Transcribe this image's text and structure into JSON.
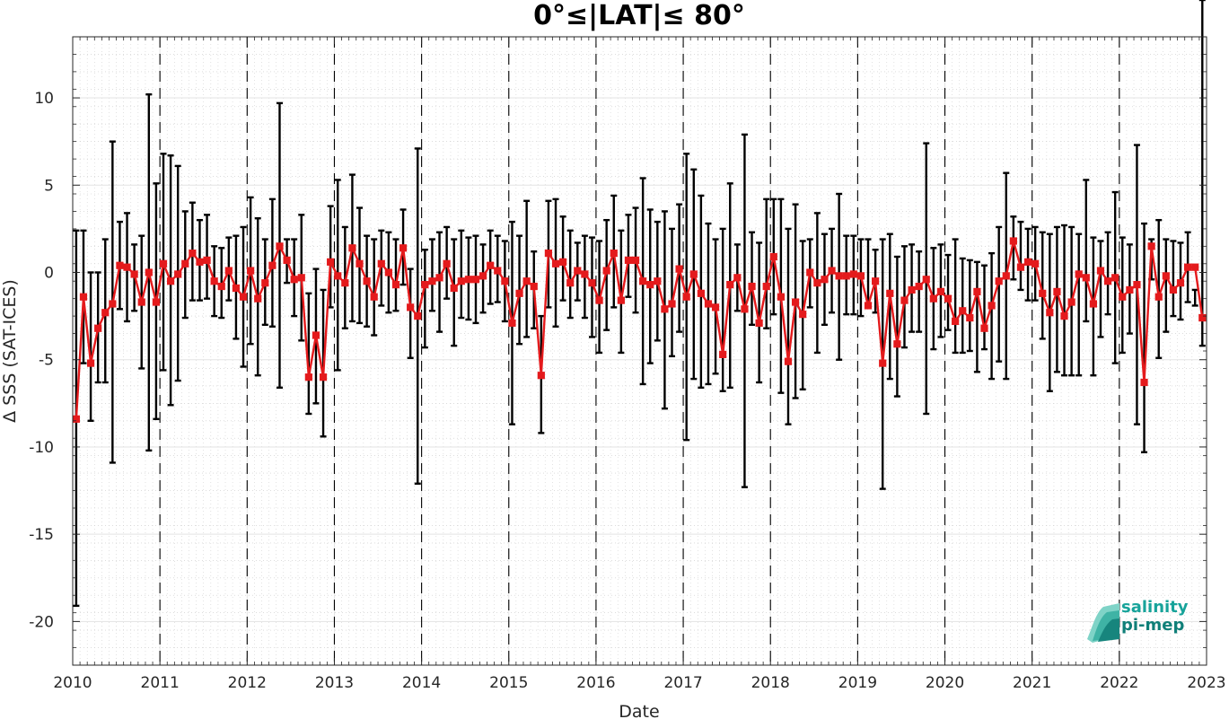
{
  "chart_data": {
    "type": "line",
    "title": "0°≤|LAT|≤ 80°",
    "xlabel": "Date",
    "ylabel": "Δ SSS (SAT-ICES)",
    "xlim": [
      2010,
      2023
    ],
    "ylim": [
      -22.5,
      13.5
    ],
    "xticks": [
      2010,
      2011,
      2012,
      2013,
      2014,
      2015,
      2016,
      2017,
      2018,
      2019,
      2020,
      2021,
      2022,
      2023
    ],
    "yticks": [
      -20,
      -15,
      -10,
      -5,
      0,
      5,
      10
    ],
    "grid": "on",
    "vertical_dashed_lines_at": [
      2011,
      2012,
      2013,
      2014,
      2015,
      2016,
      2017,
      2018,
      2019,
      2020,
      2021,
      2022
    ],
    "line_color": "#e41a1c",
    "errorbar_color": "#000000",
    "series": [
      {
        "x_start": 2010.04,
        "x_step": 0.0833,
        "values": [
          -8.4,
          -1.4,
          -5.2,
          -3.2,
          -2.3,
          -1.8,
          0.4,
          0.3,
          -0.1,
          -1.7,
          0.0,
          -1.7,
          0.5,
          -0.5,
          -0.1,
          0.5,
          1.1,
          0.6,
          0.7,
          -0.5,
          -0.8,
          0.1,
          -0.9,
          -1.4,
          0.1,
          -1.5,
          -0.6,
          0.4,
          1.5,
          0.7,
          -0.4,
          -0.3,
          -6.0,
          -3.6,
          -6.0,
          0.6,
          -0.2,
          -0.6,
          1.4,
          0.5,
          -0.5,
          -1.4,
          0.5,
          0.0,
          -0.7,
          1.4,
          -2.0,
          -2.5,
          -0.7,
          -0.5,
          -0.3,
          0.5,
          -0.9,
          -0.5,
          -0.4,
          -0.4,
          -0.2,
          0.4,
          0.1,
          -0.5,
          -2.9,
          -1.2,
          -0.5,
          -0.8,
          -5.9,
          1.1,
          0.5,
          0.6,
          -0.6,
          0.1,
          -0.1,
          -0.6,
          -1.6,
          0.1,
          1.1,
          -1.6,
          0.7,
          0.7,
          -0.5,
          -0.7,
          -0.5,
          -2.1,
          -1.8,
          0.2,
          -1.4,
          -0.1,
          -1.2,
          -1.8,
          -2.0,
          -4.7,
          -0.7,
          -0.3,
          -2.1,
          -0.8,
          -2.9,
          -0.8,
          0.9,
          -1.4,
          -5.1,
          -1.7,
          -2.4,
          0.0,
          -0.6,
          -0.4,
          0.1,
          -0.2,
          -0.2,
          -0.1,
          -0.2,
          -1.9,
          -0.5,
          -5.2,
          -1.2,
          -4.1,
          -1.6,
          -1.0,
          -0.8,
          -0.4,
          -1.5,
          -1.1,
          -1.5,
          -2.8,
          -2.2,
          -2.6,
          -1.1,
          -3.2,
          -1.9,
          -0.5,
          -0.2,
          1.8,
          0.3,
          0.6,
          0.5,
          -1.2,
          -2.3,
          -1.1,
          -2.5,
          -1.7,
          -0.1,
          -0.3,
          -1.8,
          0.1,
          -0.5,
          -0.3,
          -1.4,
          -1.0,
          -0.7,
          -6.3,
          1.5,
          -1.4,
          -0.2,
          -1.0,
          -0.6,
          0.3,
          0.3,
          -2.6
        ],
        "err_upper": [
          2.4,
          2.4,
          0.0,
          0.0,
          1.9,
          7.5,
          2.9,
          3.4,
          1.6,
          2.1,
          10.2,
          5.1,
          6.8,
          6.7,
          6.1,
          3.5,
          4.0,
          3.0,
          3.3,
          1.5,
          1.4,
          2.0,
          2.1,
          2.6,
          4.3,
          3.1,
          1.9,
          4.2,
          9.7,
          1.9,
          1.9,
          3.3,
          -1.2,
          0.2,
          -1.0,
          3.8,
          5.3,
          2.6,
          5.6,
          3.7,
          2.1,
          1.9,
          2.4,
          2.3,
          1.9,
          3.6,
          0.2,
          7.1,
          1.3,
          1.9,
          2.3,
          2.6,
          1.9,
          2.4,
          2.0,
          2.1,
          1.6,
          2.4,
          2.1,
          1.8,
          2.9,
          2.1,
          4.1,
          1.2,
          -2.5,
          4.1,
          4.2,
          3.2,
          2.4,
          1.7,
          2.1,
          2.0,
          1.8,
          3.0,
          4.4,
          2.4,
          3.3,
          3.7,
          5.4,
          3.6,
          2.9,
          3.5,
          2.5,
          3.9,
          6.8,
          5.9,
          4.4,
          2.8,
          1.9,
          2.5,
          5.1,
          1.6,
          7.9,
          2.3,
          1.7,
          4.2,
          4.2,
          4.2,
          2.5,
          3.9,
          1.8,
          1.9,
          3.4,
          2.2,
          2.5,
          4.5,
          2.1,
          2.1,
          1.9,
          1.9,
          1.3,
          1.9,
          2.2,
          0.9,
          1.5,
          1.6,
          1.2,
          7.4,
          1.4,
          1.6,
          1.0,
          1.9,
          0.8,
          0.7,
          0.6,
          0.4,
          1.1,
          2.6,
          5.7,
          3.2,
          2.9,
          2.5,
          2.6,
          2.3,
          2.2,
          2.6,
          2.7,
          2.6,
          2.2,
          5.3,
          2.0,
          1.8,
          2.3,
          4.6,
          2.0,
          1.6,
          7.3,
          2.8,
          1.9,
          3.0,
          1.9,
          1.8,
          1.7,
          2.3,
          -1.0
        ],
        "err_lower": [
          -19.1,
          -5.2,
          -8.5,
          -6.3,
          -6.3,
          -10.9,
          -2.1,
          -2.8,
          -2.2,
          -5.5,
          -10.2,
          -8.4,
          -5.6,
          -7.6,
          -6.2,
          -2.6,
          -1.6,
          -1.6,
          -1.5,
          -2.5,
          -2.6,
          -1.6,
          -3.8,
          -5.4,
          -4.1,
          -5.9,
          -3.0,
          -3.1,
          -6.6,
          -0.6,
          -2.5,
          -3.9,
          -8.1,
          -7.5,
          -9.4,
          -2.0,
          -5.6,
          -3.2,
          -2.8,
          -2.9,
          -3.1,
          -3.6,
          -1.9,
          -2.3,
          -2.2,
          -0.7,
          -4.9,
          -12.1,
          -4.3,
          -2.2,
          -3.4,
          -1.5,
          -4.2,
          -2.6,
          -2.7,
          -2.9,
          -2.3,
          -1.8,
          -1.7,
          -2.8,
          -8.7,
          -4.1,
          -3.7,
          -3.2,
          -9.2,
          -2.0,
          -3.1,
          -1.6,
          -2.6,
          -1.6,
          -2.6,
          -3.7,
          -4.6,
          -3.3,
          -2.0,
          -4.6,
          -1.4,
          -2.3,
          -6.4,
          -5.2,
          -3.9,
          -7.8,
          -4.8,
          -3.4,
          -9.6,
          -6.1,
          -6.6,
          -6.4,
          -5.8,
          -6.8,
          -6.6,
          -2.2,
          -12.3,
          -3.0,
          -6.3,
          -3.2,
          -2.4,
          -6.9,
          -8.7,
          -7.2,
          -6.7,
          -2.0,
          -4.6,
          -3.0,
          -2.3,
          -5.0,
          -2.4,
          -2.4,
          -2.5,
          -2.0,
          -2.3,
          -12.4,
          -6.1,
          -7.1,
          -4.3,
          -3.4,
          -3.4,
          -8.1,
          -4.4,
          -3.7,
          -3.3,
          -4.6,
          -4.6,
          -4.5,
          -5.7,
          -4.4,
          -6.1,
          -5.1,
          -6.1,
          -0.4,
          -1.0,
          -1.6,
          -1.6,
          -3.8,
          -6.8,
          -5.7,
          -5.9,
          -5.9,
          -5.9,
          -2.8,
          -5.9,
          -3.7,
          -2.4,
          -5.2,
          -4.6,
          -3.5,
          -8.7,
          -10.3,
          -0.4,
          -4.9,
          -3.4,
          -2.5,
          -2.7,
          -1.7,
          -1.9,
          -4.2
        ]
      }
    ]
  },
  "logo": {
    "line1": "salinity",
    "line2": "pi-mep"
  }
}
